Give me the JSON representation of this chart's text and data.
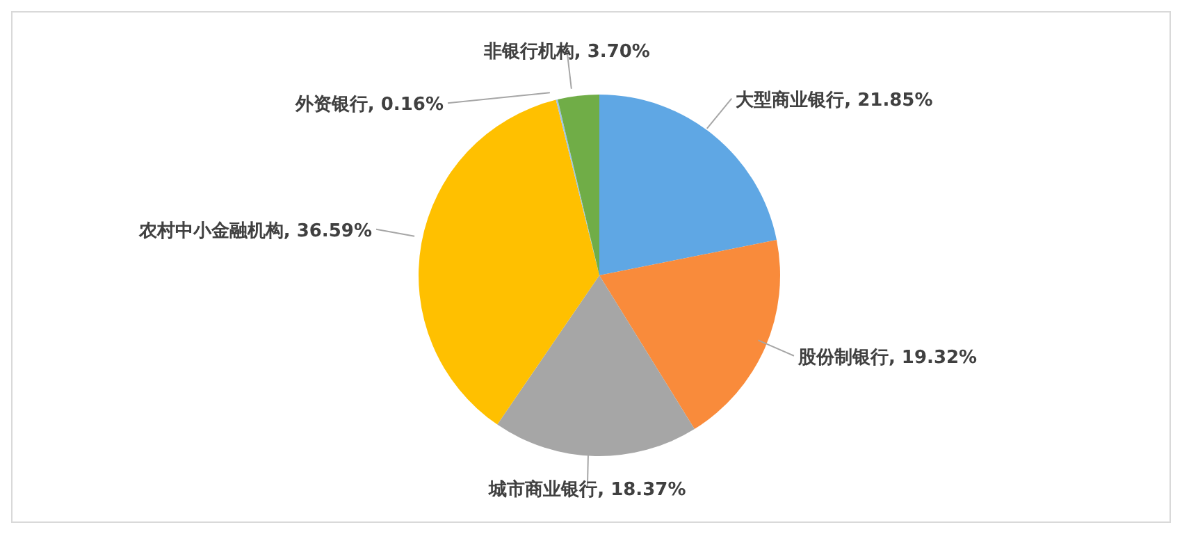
{
  "chart_data": {
    "type": "pie",
    "categories": [
      "大型商业银行",
      "股份制银行",
      "城市商业银行",
      "农村中小金融机构",
      "外资银行",
      "非银行机构"
    ],
    "values": [
      21.85,
      19.32,
      18.37,
      36.59,
      0.16,
      3.7
    ],
    "value_labels": [
      "21.85%",
      "19.32%",
      "18.37%",
      "36.59%",
      "0.16%",
      "3.70%"
    ],
    "colors": [
      "#5fa7e4",
      "#f98b3b",
      "#a6a6a6",
      "#ffc000",
      "#9dc3e6",
      "#70ad47"
    ]
  }
}
